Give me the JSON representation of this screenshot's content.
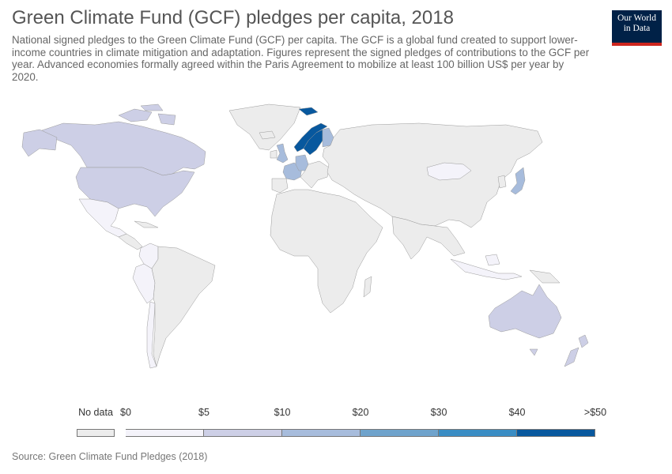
{
  "header": {
    "title": "Green Climate Fund (GCF) pledges per capita, 2018",
    "subtitle": "National signed pledges to the Green Climate Fund (GCF) per capita. The GCF is a global fund created to support lower-income countries in climate mitigation and adaptation. Figures represent the signed pledges of contributions to the GCF per year. Advanced economies formally agreed within the Paris Agreement to mobilize at least 100 billion US$ per year by 2020."
  },
  "logo": {
    "line1": "Our World",
    "line2": "in Data"
  },
  "colors": {
    "no_data": "#ececec",
    "bin_0_5": "#f4f3fa",
    "bin_5_10": "#cdcfe6",
    "bin_10_20": "#a7bcdc",
    "bin_20_30": "#6fa3cc",
    "bin_30_40": "#3a8dc4",
    "bin_40_50": "#08589e",
    "border": "#9a9a9a"
  },
  "legend": {
    "no_data_label": "No data",
    "ticks": [
      "$0",
      "$5",
      "$10",
      "$20",
      "$30",
      "$40",
      ">$50"
    ]
  },
  "regions": [
    {
      "name": "Canada",
      "bin": "bin_5_10"
    },
    {
      "name": "United States",
      "bin": "bin_5_10"
    },
    {
      "name": "Mexico",
      "bin": "bin_0_5"
    },
    {
      "name": "Colombia",
      "bin": "bin_0_5"
    },
    {
      "name": "Peru",
      "bin": "bin_0_5"
    },
    {
      "name": "Chile",
      "bin": "bin_0_5"
    },
    {
      "name": "Greenland",
      "bin": "no_data"
    },
    {
      "name": "United Kingdom",
      "bin": "bin_10_20"
    },
    {
      "name": "France",
      "bin": "bin_10_20"
    },
    {
      "name": "Germany",
      "bin": "bin_10_20"
    },
    {
      "name": "Norway",
      "bin": "bin_40_50"
    },
    {
      "name": "Sweden",
      "bin": "bin_40_50"
    },
    {
      "name": "Finland",
      "bin": "bin_10_20"
    },
    {
      "name": "Japan",
      "bin": "bin_10_20"
    },
    {
      "name": "Mongolia",
      "bin": "bin_0_5"
    },
    {
      "name": "Indonesia",
      "bin": "bin_0_5"
    },
    {
      "name": "Australia",
      "bin": "bin_5_10"
    },
    {
      "name": "New Zealand",
      "bin": "bin_5_10"
    }
  ],
  "source": "Source: Green Climate Fund Pledges (2018)"
}
